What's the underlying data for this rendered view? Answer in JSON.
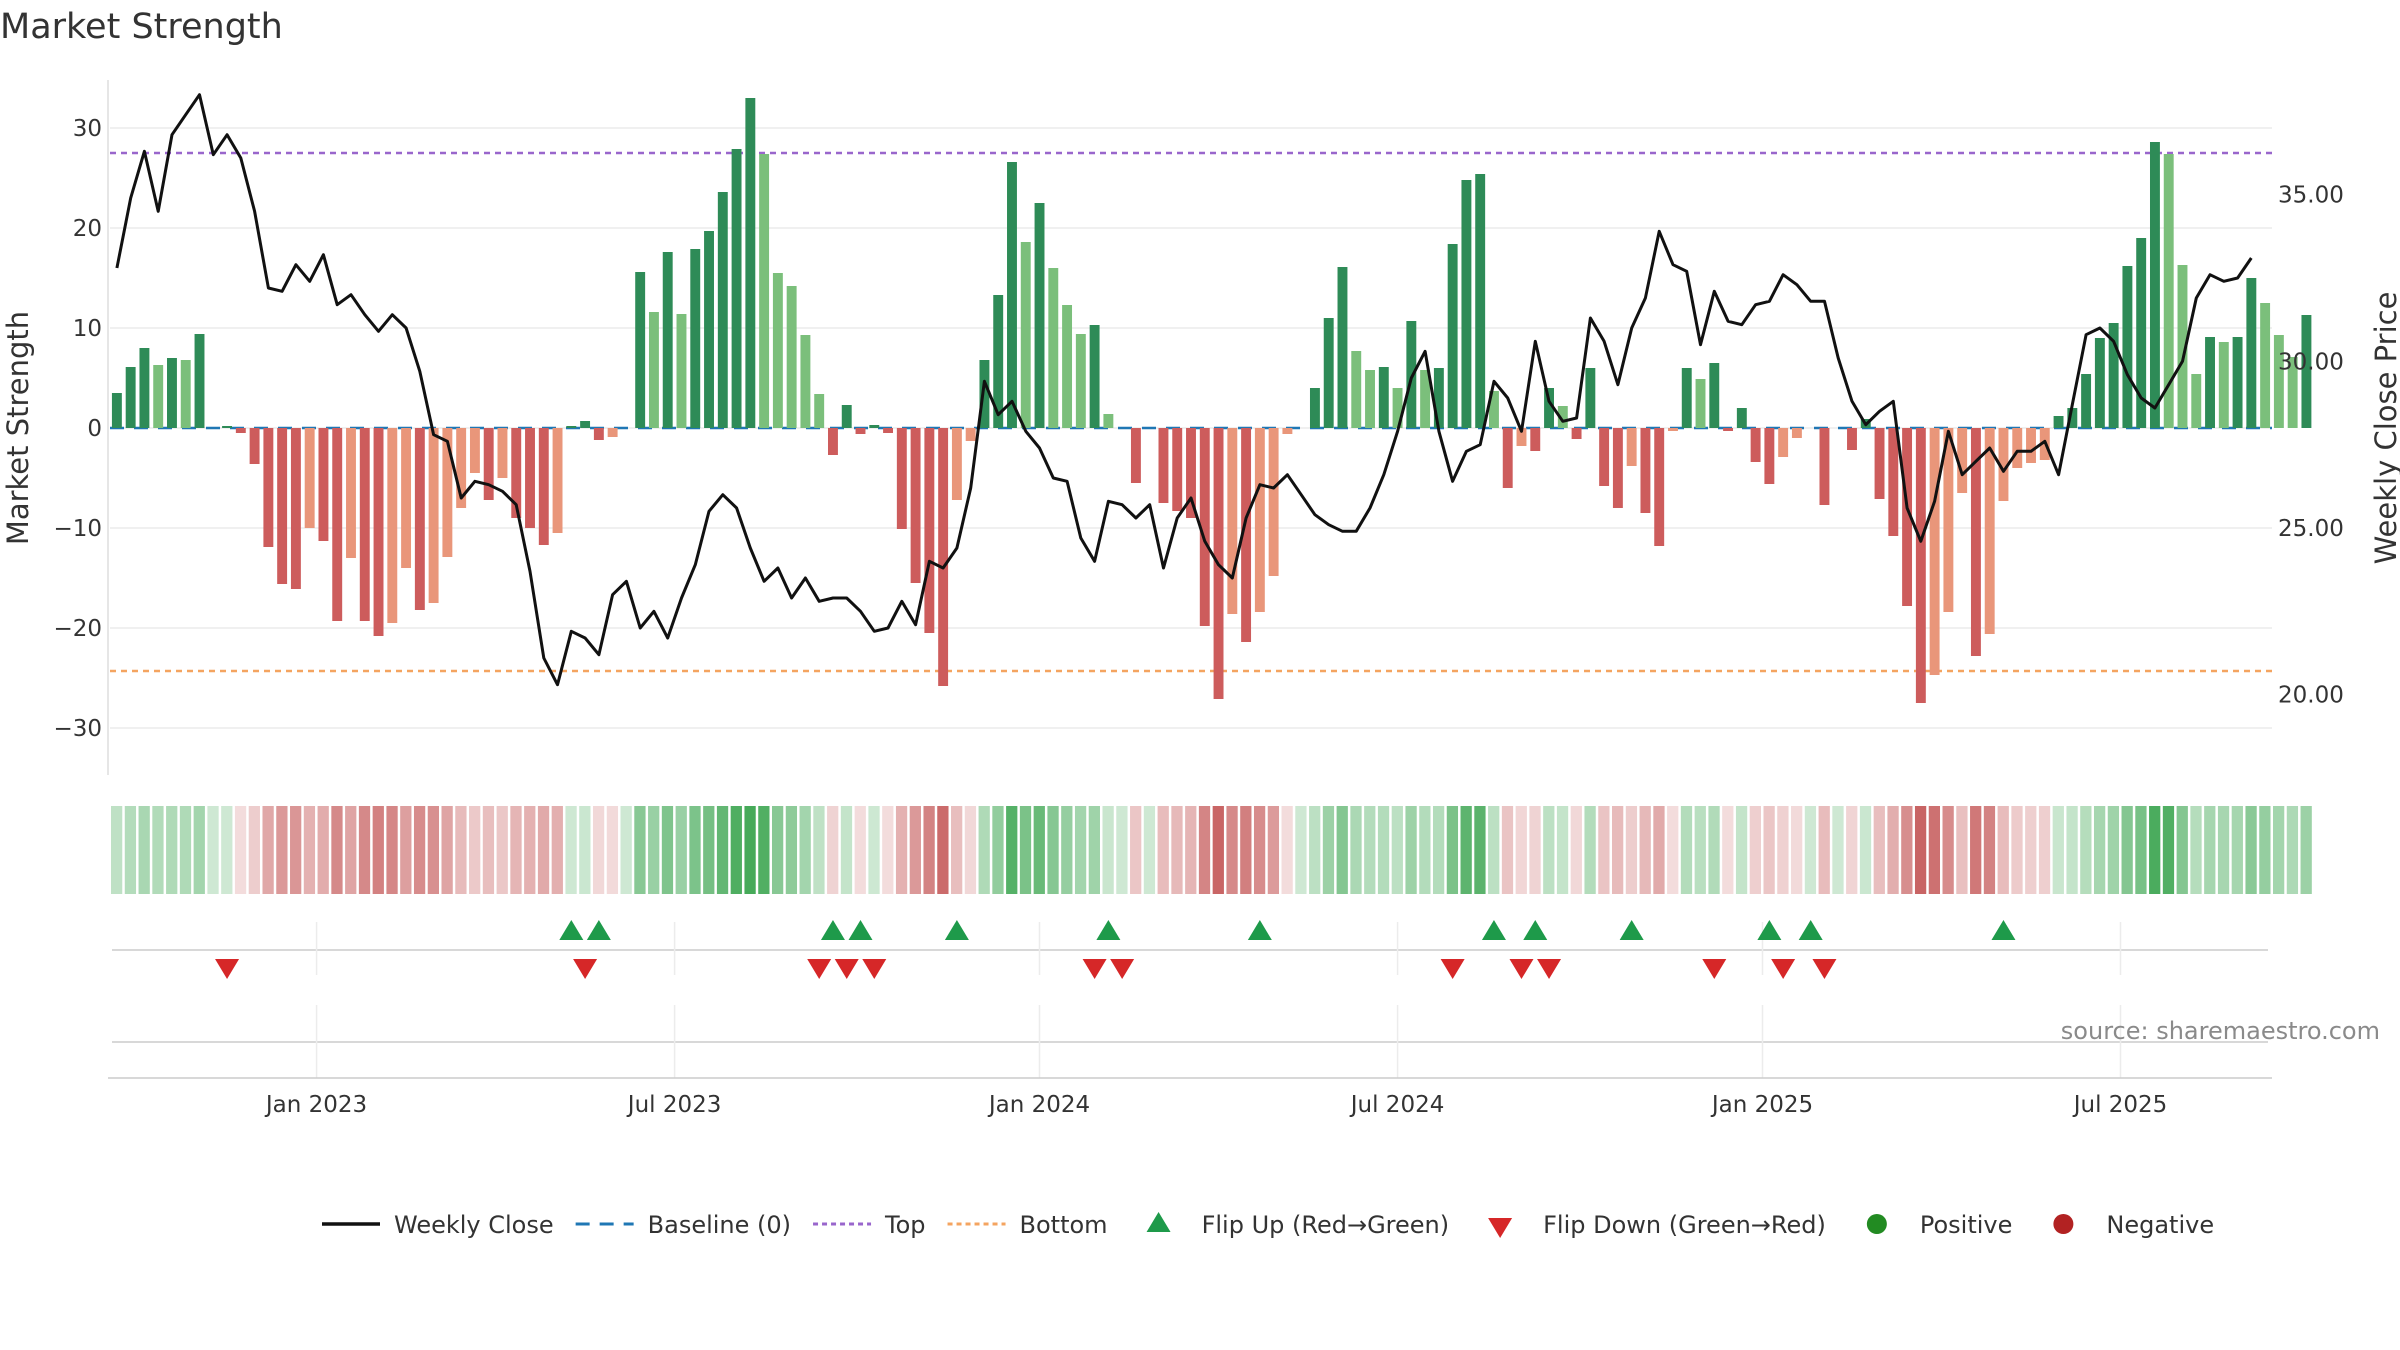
{
  "chart_data": {
    "type": "bar",
    "title": "Market Strength",
    "ylabel": "Market Strength",
    "y2label": "Weekly Close Price",
    "source": "source: sharemaestro.com",
    "ylim": [
      -35,
      35
    ],
    "y2lim": [
      17.5,
      38.5
    ],
    "yticks": [
      -30,
      -20,
      -10,
      0,
      10,
      20,
      30
    ],
    "y2ticks": [
      "20.00",
      "25.00",
      "30.00",
      "35.00"
    ],
    "xlim": [
      0,
      157
    ],
    "xticks": [
      {
        "label": "Jan 2023",
        "week": 14.5
      },
      {
        "label": "Jul 2023",
        "week": 40.5
      },
      {
        "label": "Jan 2024",
        "week": 67
      },
      {
        "label": "Jul 2024",
        "week": 93
      },
      {
        "label": "Jan 2025",
        "week": 119.5
      },
      {
        "label": "Jul 2025",
        "week": 145.5
      }
    ],
    "top_level": 27.5,
    "bottom_level": -24.3,
    "strength": [
      3.5,
      6.1,
      8.0,
      6.3,
      7.0,
      6.8,
      9.4,
      0,
      0.2,
      -0.5,
      -3.6,
      -11.9,
      -15.6,
      -16.1,
      -10.0,
      -11.3,
      -19.3,
      -13.0,
      -19.3,
      -20.8,
      -19.5,
      -14.0,
      -18.2,
      -17.5,
      -12.9,
      -8.0,
      -4.5,
      -7.2,
      -5.0,
      -9.0,
      -10.0,
      -11.7,
      -10.5,
      0.2,
      0.7,
      -1.2,
      -0.9,
      0,
      15.6,
      11.6,
      17.6,
      11.4,
      17.9,
      19.7,
      23.6,
      27.9,
      33.0,
      27.4,
      15.5,
      14.2,
      9.3,
      3.4,
      -2.7,
      2.3,
      -0.6,
      0.3,
      -0.5,
      -10.1,
      -15.5,
      -20.5,
      -25.8,
      -7.2,
      -1.3,
      6.8,
      13.3,
      26.6,
      18.6,
      22.5,
      16.0,
      12.3,
      9.4,
      10.3,
      1.4,
      0,
      -5.5,
      0,
      -7.5,
      -8.3,
      -9.0,
      -19.8,
      -27.1,
      -18.6,
      -21.4,
      -18.4,
      -14.8,
      -0.6,
      0,
      4.0,
      11.0,
      16.1,
      7.7,
      5.8,
      6.1,
      4.0,
      10.7,
      5.8,
      6.0,
      18.4,
      24.8,
      25.4,
      3.7,
      -6.0,
      -1.8,
      -2.3,
      4.0,
      2.2,
      -1.1,
      6.0,
      -5.8,
      -8.0,
      -3.8,
      -8.5,
      -11.8,
      -0.3,
      6.0,
      4.9,
      6.5,
      -0.3,
      2.0,
      -3.4,
      -5.6,
      -2.9,
      -1.0,
      0,
      -7.7,
      0,
      -2.2,
      0.9,
      -7.1,
      -10.8,
      -17.8,
      -27.5,
      -24.7,
      -18.4,
      -6.5,
      -22.8,
      -20.6,
      -7.3,
      -4.0,
      -3.5,
      -3.2,
      1.2,
      2.0,
      5.4,
      9.0,
      10.5,
      16.2,
      19.0,
      28.6,
      27.4,
      16.3,
      5.4,
      9.1,
      8.6,
      9.1,
      15.0,
      12.5,
      9.3,
      7.1,
      11.3
    ],
    "close_xy": [
      [
        0,
        32.8
      ],
      [
        1,
        34.9
      ],
      [
        2,
        36.3
      ],
      [
        3,
        34.5
      ],
      [
        4,
        36.8
      ],
      [
        5,
        37.4
      ],
      [
        6,
        38.0
      ],
      [
        7,
        36.2
      ],
      [
        8,
        36.8
      ],
      [
        9,
        36.1
      ],
      [
        10,
        34.5
      ],
      [
        11,
        32.2
      ],
      [
        12,
        32.1
      ],
      [
        13,
        32.9
      ],
      [
        14,
        32.4
      ],
      [
        15,
        33.2
      ],
      [
        16,
        31.7
      ],
      [
        17,
        32.0
      ],
      [
        18,
        31.4
      ],
      [
        19,
        30.9
      ],
      [
        20,
        31.4
      ],
      [
        21,
        31.0
      ],
      [
        22,
        29.7
      ],
      [
        23,
        27.8
      ],
      [
        24,
        27.6
      ],
      [
        25,
        25.9
      ],
      [
        26,
        26.4
      ],
      [
        27,
        26.3
      ],
      [
        28,
        26.1
      ],
      [
        29,
        25.7
      ],
      [
        30,
        23.7
      ],
      [
        31,
        21.1
      ],
      [
        32,
        20.3
      ],
      [
        33,
        21.9
      ],
      [
        34,
        21.7
      ],
      [
        35,
        21.2
      ],
      [
        36,
        23.0
      ],
      [
        37,
        23.4
      ],
      [
        38,
        22.0
      ],
      [
        39,
        22.5
      ],
      [
        40,
        21.7
      ],
      [
        41,
        22.9
      ],
      [
        42,
        23.9
      ],
      [
        43,
        25.5
      ],
      [
        44,
        26.0
      ],
      [
        45,
        25.6
      ],
      [
        46,
        24.4
      ],
      [
        47,
        23.4
      ],
      [
        48,
        23.8
      ],
      [
        49,
        22.9
      ],
      [
        50,
        23.5
      ],
      [
        51,
        22.8
      ],
      [
        52,
        22.9
      ],
      [
        53,
        22.9
      ],
      [
        54,
        22.5
      ],
      [
        55,
        21.9
      ],
      [
        56,
        22.0
      ],
      [
        57,
        22.8
      ],
      [
        58,
        22.1
      ],
      [
        59,
        24.0
      ],
      [
        60,
        23.8
      ],
      [
        61,
        24.4
      ],
      [
        62,
        26.2
      ],
      [
        63,
        29.4
      ],
      [
        64,
        28.4
      ],
      [
        65,
        28.8
      ],
      [
        66,
        27.9
      ],
      [
        67,
        27.4
      ],
      [
        68,
        26.5
      ],
      [
        69,
        26.4
      ],
      [
        70,
        24.7
      ],
      [
        71,
        24.0
      ],
      [
        72,
        25.8
      ],
      [
        73,
        25.7
      ],
      [
        74,
        25.3
      ],
      [
        75,
        25.7
      ],
      [
        76,
        23.8
      ],
      [
        77,
        25.3
      ],
      [
        78,
        25.9
      ],
      [
        79,
        24.6
      ],
      [
        80,
        23.9
      ],
      [
        81,
        23.5
      ],
      [
        82,
        25.3
      ],
      [
        83,
        26.3
      ],
      [
        84,
        26.2
      ],
      [
        85,
        26.6
      ],
      [
        86,
        26.0
      ],
      [
        87,
        25.4
      ],
      [
        88,
        25.1
      ],
      [
        89,
        24.9
      ],
      [
        90,
        24.9
      ],
      [
        91,
        25.6
      ],
      [
        92,
        26.6
      ],
      [
        93,
        27.9
      ],
      [
        94,
        29.5
      ],
      [
        95,
        30.3
      ],
      [
        96,
        27.9
      ],
      [
        97,
        26.4
      ],
      [
        98,
        27.3
      ],
      [
        99,
        27.5
      ],
      [
        100,
        29.4
      ],
      [
        101,
        28.9
      ],
      [
        102,
        27.9
      ],
      [
        103,
        30.6
      ],
      [
        104,
        28.8
      ],
      [
        105,
        28.2
      ],
      [
        106,
        28.3
      ],
      [
        107,
        31.3
      ],
      [
        108,
        30.6
      ],
      [
        109,
        29.3
      ],
      [
        110,
        31.0
      ],
      [
        111,
        31.9
      ],
      [
        112,
        33.9
      ],
      [
        113,
        32.9
      ],
      [
        114,
        32.7
      ],
      [
        115,
        30.5
      ],
      [
        116,
        32.1
      ],
      [
        117,
        31.2
      ],
      [
        118,
        31.1
      ],
      [
        119,
        31.7
      ],
      [
        120,
        31.8
      ],
      [
        121,
        32.6
      ],
      [
        122,
        32.3
      ],
      [
        123,
        31.8
      ],
      [
        124,
        31.8
      ],
      [
        125,
        30.1
      ],
      [
        126,
        28.8
      ],
      [
        127,
        28.1
      ],
      [
        128,
        28.5
      ],
      [
        129,
        28.8
      ],
      [
        130,
        25.6
      ],
      [
        131,
        24.6
      ],
      [
        132,
        25.8
      ],
      [
        133,
        27.9
      ],
      [
        134,
        26.6
      ],
      [
        135,
        27.0
      ],
      [
        136,
        27.4
      ],
      [
        137,
        26.7
      ],
      [
        138,
        27.3
      ],
      [
        139,
        27.3
      ],
      [
        140,
        27.6
      ],
      [
        141,
        26.6
      ],
      [
        142,
        28.7
      ],
      [
        143,
        30.8
      ],
      [
        144,
        31.0
      ],
      [
        145,
        30.6
      ],
      [
        146,
        29.6
      ],
      [
        147,
        28.9
      ],
      [
        148,
        28.6
      ],
      [
        149,
        29.3
      ],
      [
        150,
        30.0
      ],
      [
        151,
        31.9
      ],
      [
        152,
        32.6
      ],
      [
        153,
        32.4
      ],
      [
        154,
        32.5
      ],
      [
        155,
        33.1
      ]
    ],
    "flip_up_weeks": [
      33,
      35,
      52,
      54,
      61,
      72,
      83,
      100,
      103,
      110,
      120,
      123,
      137
    ],
    "flip_down_weeks": [
      8,
      34,
      51,
      53,
      55,
      71,
      73,
      97,
      102,
      104,
      116,
      121,
      124
    ],
    "colors": {
      "pos_strong": "#2e8b57",
      "pos_light": "#7bbf7b",
      "neg_strong": "#cd5c5c",
      "neg_light": "#e9967a",
      "close_line": "#111111",
      "baseline": "#1f77b4",
      "top_line": "#9966cc",
      "bottom_line": "#f4a460",
      "flip_up": "#1e9a4a",
      "flip_down": "#d62728",
      "positive": "#228b22",
      "negative": "#b22222"
    }
  },
  "legend": [
    {
      "label": "Weekly Close",
      "kind": "line-solid",
      "color": "#111111"
    },
    {
      "label": "Baseline (0)",
      "kind": "line-dash",
      "color": "#1f77b4"
    },
    {
      "label": "Top",
      "kind": "line-dot",
      "color": "#9966cc"
    },
    {
      "label": "Bottom",
      "kind": "line-dot",
      "color": "#f4a460"
    },
    {
      "label": "Flip Up (Red→Green)",
      "kind": "tri-up",
      "color": "#1e9a4a"
    },
    {
      "label": "Flip Down (Green→Red)",
      "kind": "tri-down",
      "color": "#d62728"
    },
    {
      "label": "Positive",
      "kind": "circle",
      "color": "#228b22"
    },
    {
      "label": "Negative",
      "kind": "circle",
      "color": "#b22222"
    }
  ]
}
